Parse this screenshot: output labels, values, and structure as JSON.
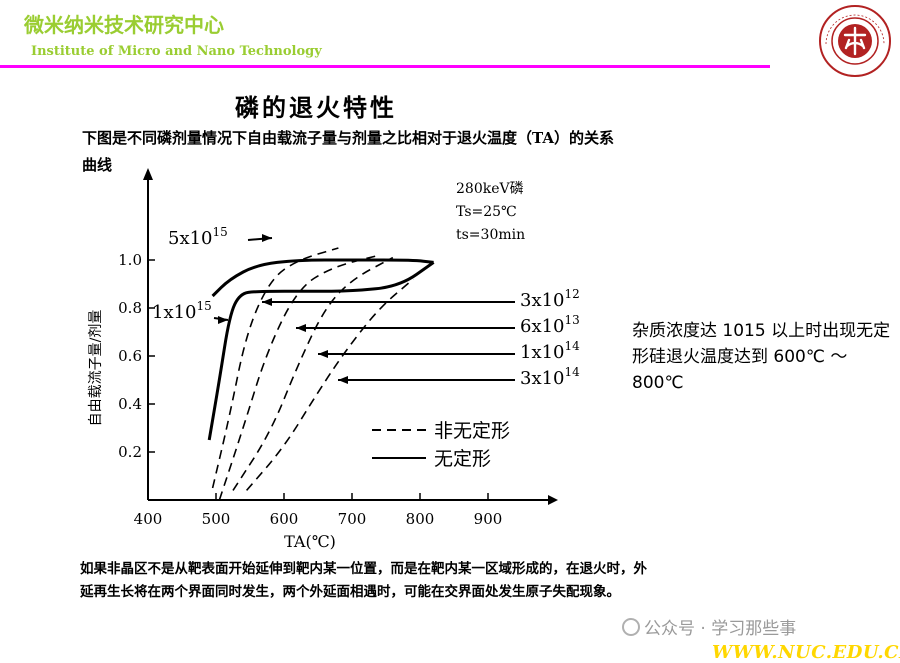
{
  "header": {
    "title_cn": "微米纳米技术研究中心",
    "title_en": "Institute of Micro and Nano Technology",
    "accent_color": "#ff00ff",
    "header_text_color": "#9acd32",
    "logo_icon": "university-seal-icon"
  },
  "slide": {
    "title": "磷的退火特性",
    "intro_text": "下图是不同磷剂量情况下自由载流子量与剂量之比相对于退火温度（TA）的关系曲线",
    "side_note": "杂质浓度达 1015 以上时出现无定形硅退火温度达到 600℃ ～ 800℃",
    "bottom_text": "如果非晶区不是从靶表面开始延伸到靶内某一位置，而是在靶内某一区域形成的，在退火时，外延再生长将在两个界面同时发生，两个外延面相遇时，可能在交界面处发生原子失配现象。"
  },
  "chart_data": {
    "type": "line",
    "title": "",
    "xlabel": "TA(℃)",
    "ylabel": "自由载流子量/剂量",
    "xlim": [
      400,
      900
    ],
    "ylim": [
      0,
      1.1
    ],
    "x_ticks": [
      "400",
      "500",
      "600",
      "700",
      "800",
      "900"
    ],
    "y_ticks": [
      "0.2",
      "0.4",
      "0.6",
      "0.8",
      "1.0"
    ],
    "conditions": [
      "280keV磷",
      "Ts=25℃",
      "ts=30min"
    ],
    "legend": [
      {
        "style": "dashed",
        "label": "非无定形"
      },
      {
        "style": "solid",
        "label": "无定形"
      }
    ],
    "series": [
      {
        "name": "5x10^15",
        "label_base": "5x10",
        "label_exp": "15",
        "style": "solid",
        "x": [
          495,
          520,
          560,
          620,
          700,
          790,
          820
        ],
        "y": [
          0.85,
          0.92,
          0.98,
          1.0,
          1.0,
          1.0,
          0.99
        ]
      },
      {
        "name": "1x10^15",
        "label_base": "1x10",
        "label_exp": "15",
        "style": "solid",
        "x": [
          490,
          505,
          520,
          535,
          560,
          640,
          700,
          770,
          820
        ],
        "y": [
          0.25,
          0.5,
          0.77,
          0.86,
          0.87,
          0.87,
          0.87,
          0.89,
          0.99
        ]
      },
      {
        "name": "3x10^12",
        "label_base": "3x10",
        "label_exp": "12",
        "style": "dashed",
        "x": [
          495,
          520,
          545,
          580,
          620,
          680
        ],
        "y": [
          0.05,
          0.35,
          0.7,
          0.92,
          1.0,
          1.05
        ]
      },
      {
        "name": "6x10^13",
        "label_base": "6x10",
        "label_exp": "13",
        "style": "dashed",
        "x": [
          505,
          540,
          575,
          620,
          670,
          740
        ],
        "y": [
          0.0,
          0.3,
          0.62,
          0.88,
          0.97,
          1.02
        ]
      },
      {
        "name": "1x10^14",
        "label_base": "1x10",
        "label_exp": "14",
        "style": "dashed",
        "x": [
          525,
          580,
          620,
          660,
          700,
          760
        ],
        "y": [
          0.04,
          0.28,
          0.56,
          0.8,
          0.92,
          1.01
        ]
      },
      {
        "name": "3x10^14",
        "label_base": "3x10",
        "label_exp": "14",
        "style": "dashed",
        "x": [
          545,
          600,
          650,
          690,
          740,
          790
        ],
        "y": [
          0.04,
          0.22,
          0.45,
          0.62,
          0.8,
          0.92
        ]
      }
    ]
  },
  "watermark": {
    "text": "公众号 · 学习那些事",
    "site": "WWW.NUC.EDU.CN"
  }
}
